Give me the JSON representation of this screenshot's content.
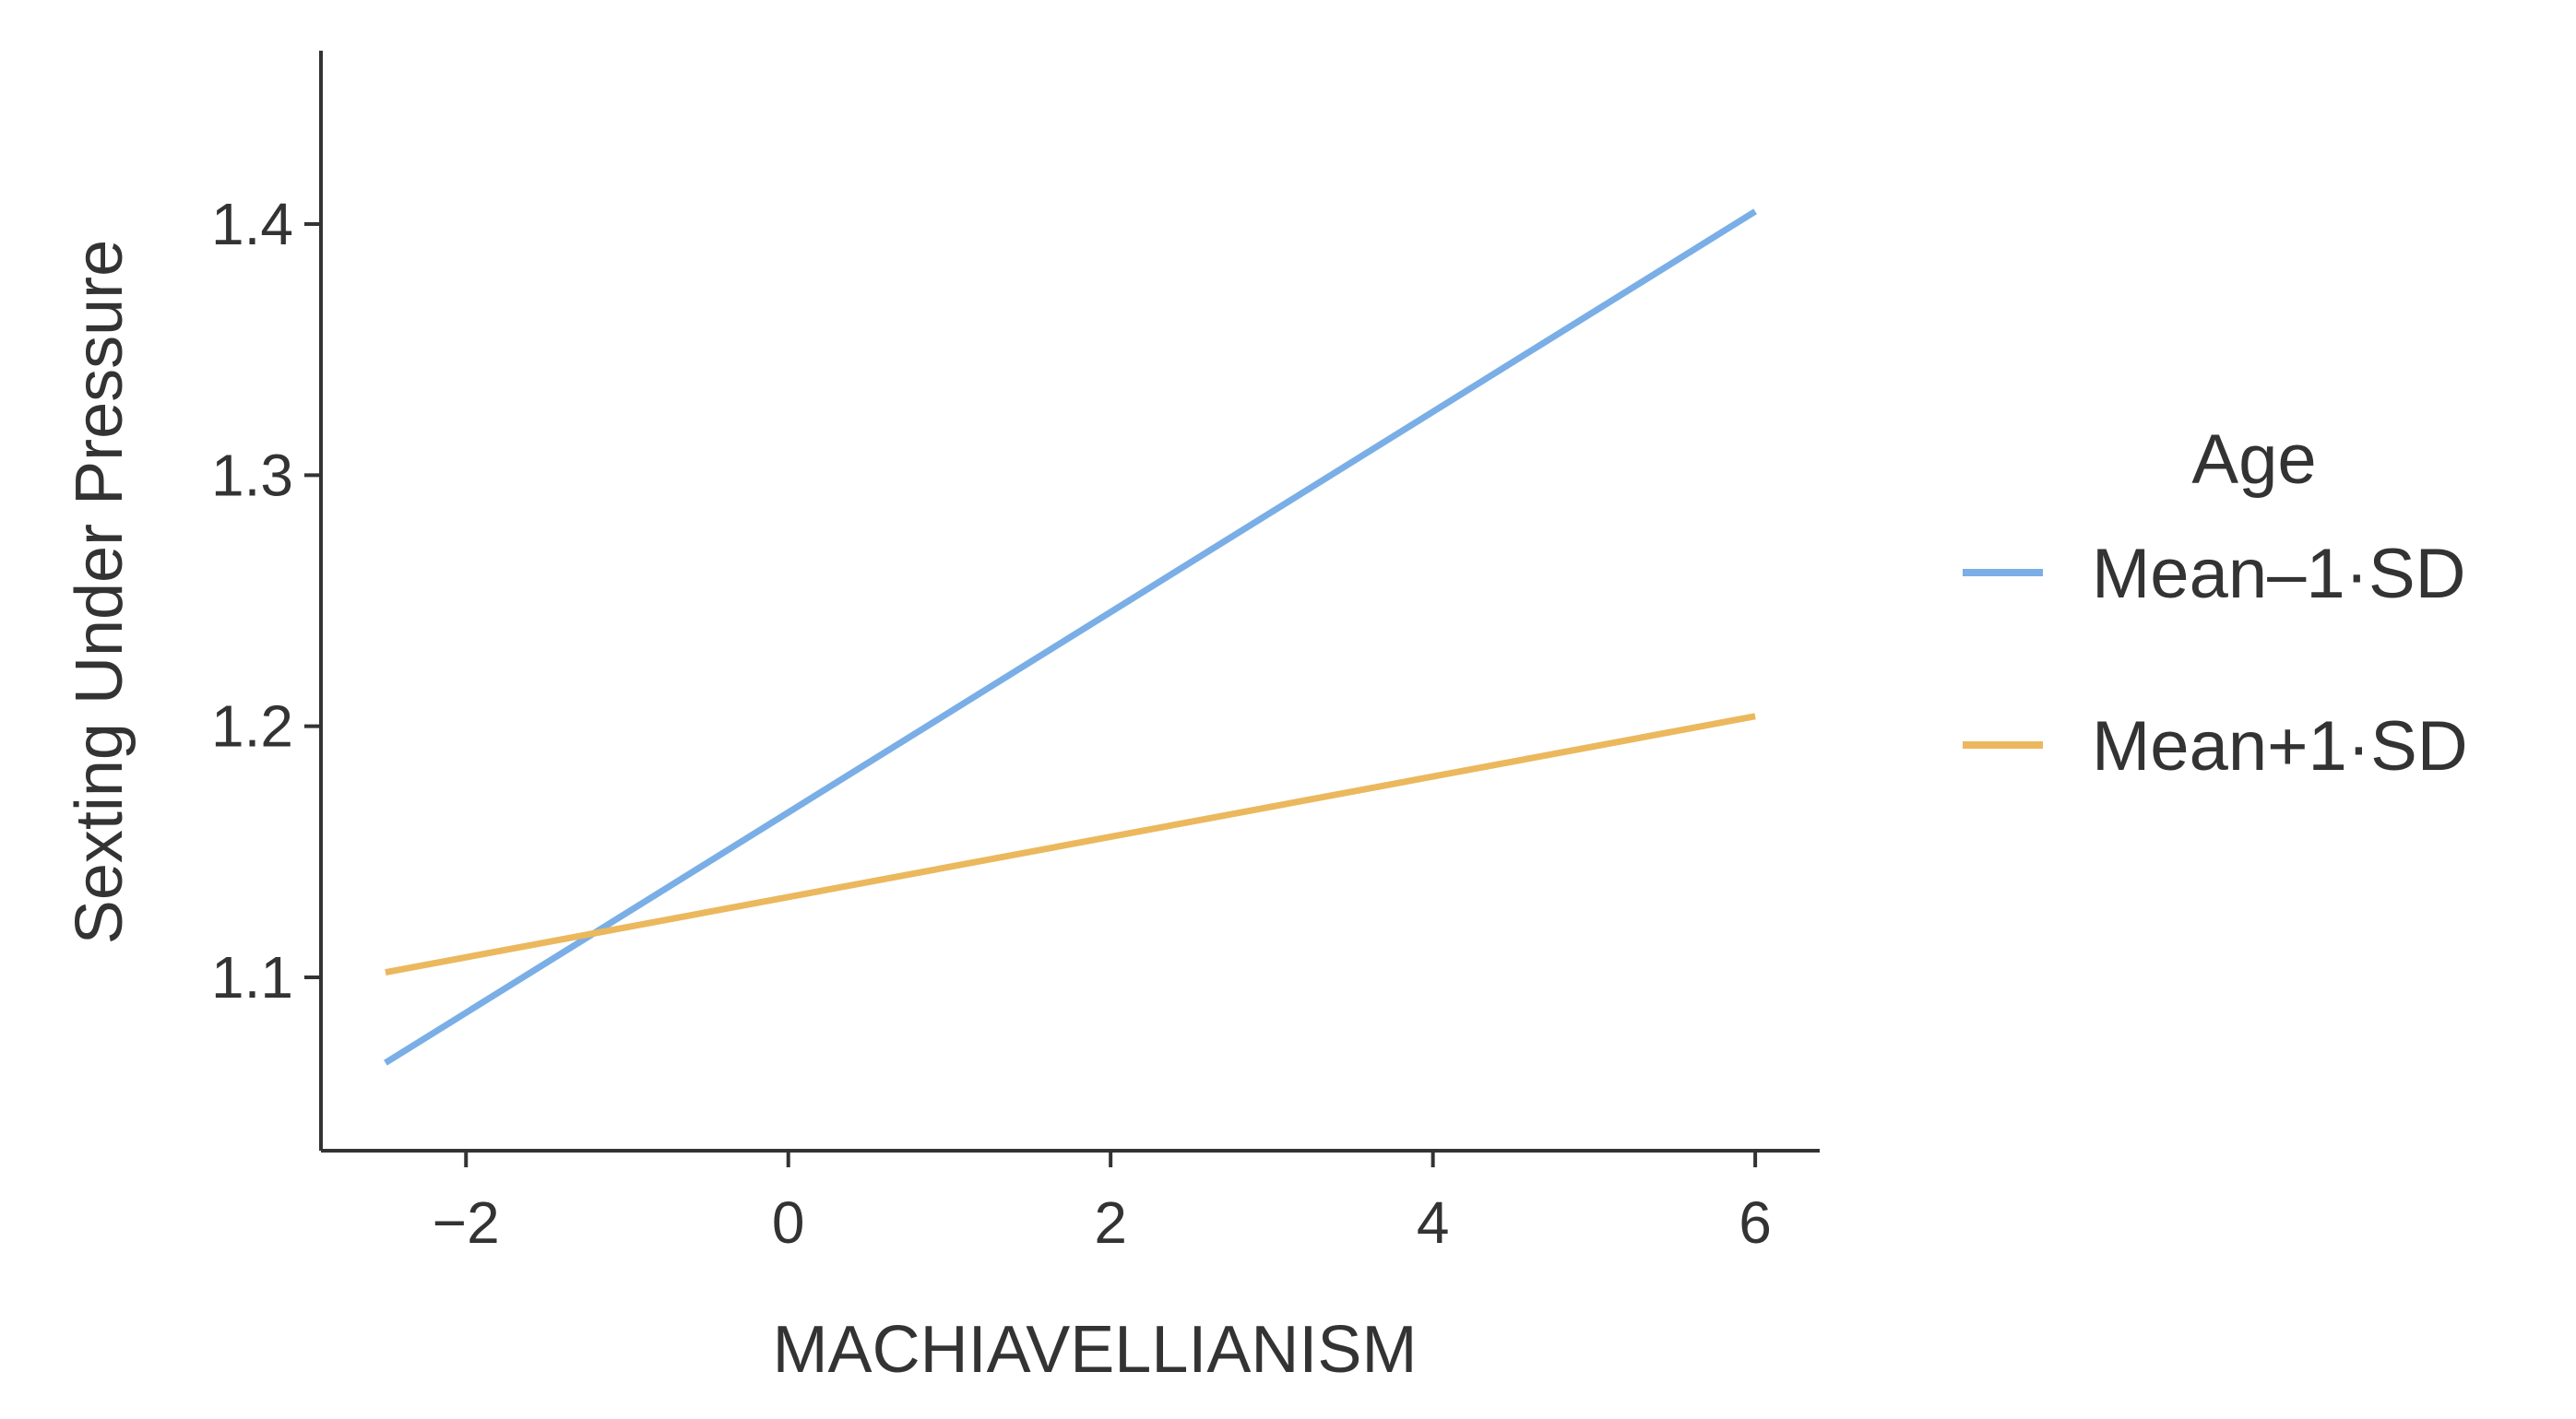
{
  "chart_data": {
    "type": "line",
    "xlabel": "MACHIAVELLIANISM",
    "ylabel": "Sexting Under Pressure",
    "xlim": [
      -2.9,
      6.4
    ],
    "ylim": [
      1.031,
      1.469
    ],
    "xticks": [
      -2,
      0,
      2,
      4,
      6
    ],
    "xtick_labels": [
      "−2",
      "0",
      "2",
      "4",
      "6"
    ],
    "yticks": [
      1.1,
      1.2,
      1.3,
      1.4
    ],
    "ytick_labels": [
      "1.1",
      "1.2",
      "1.3",
      "1.4"
    ],
    "grid": false,
    "legend": {
      "title": "Age",
      "position": "right"
    },
    "series": [
      {
        "name": "Mean–1·SD",
        "color": "#7aaee6",
        "x": [
          -2.5,
          6.0
        ],
        "y": [
          1.066,
          1.405
        ]
      },
      {
        "name": "Mean+1·SD",
        "color": "#ebb85e",
        "x": [
          -2.5,
          6.0
        ],
        "y": [
          1.102,
          1.204
        ]
      }
    ]
  }
}
